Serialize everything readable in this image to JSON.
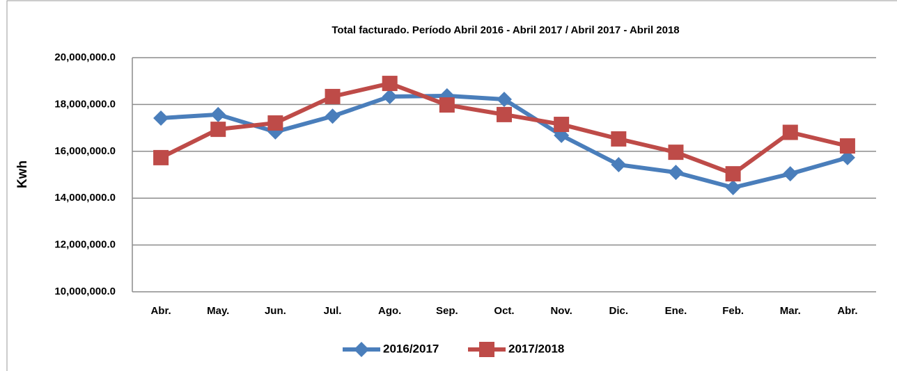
{
  "chart_data": {
    "type": "line",
    "title": "Total facturado. Período Abril 2016 - Abril 2017 / Abril 2017 - Abril 2018",
    "ylabel": "Kwh",
    "categories": [
      "Abr.",
      "May.",
      "Jun.",
      "Jul.",
      "Ago.",
      "Sep.",
      "Oct.",
      "Nov.",
      "Dic.",
      "Ene.",
      "Feb.",
      "Mar.",
      "Abr."
    ],
    "series": [
      {
        "name": "2016/2017",
        "color": "#4a7ebb",
        "marker": "diamond",
        "values": [
          17420000,
          17570000,
          16830000,
          17500000,
          18340000,
          18370000,
          18220000,
          16680000,
          15430000,
          15100000,
          14450000,
          15040000,
          15730000
        ]
      },
      {
        "name": "2017/2018",
        "color": "#be4b48",
        "marker": "square",
        "values": [
          15730000,
          16940000,
          17210000,
          18340000,
          18900000,
          17980000,
          17570000,
          17150000,
          16530000,
          15960000,
          15040000,
          16810000,
          16230000
        ]
      }
    ],
    "ylim": [
      10000000,
      20000000
    ],
    "yticks": [
      {
        "value": 10000000,
        "label": "10,000,000.0"
      },
      {
        "value": 12000000,
        "label": "12,000,000.0"
      },
      {
        "value": 14000000,
        "label": "14,000,000.0"
      },
      {
        "value": 16000000,
        "label": "16,000,000.0"
      },
      {
        "value": 18000000,
        "label": "18,000,000.0"
      },
      {
        "value": 20000000,
        "label": "20,000,000.0"
      }
    ],
    "grid": true,
    "legend": "bottom"
  }
}
